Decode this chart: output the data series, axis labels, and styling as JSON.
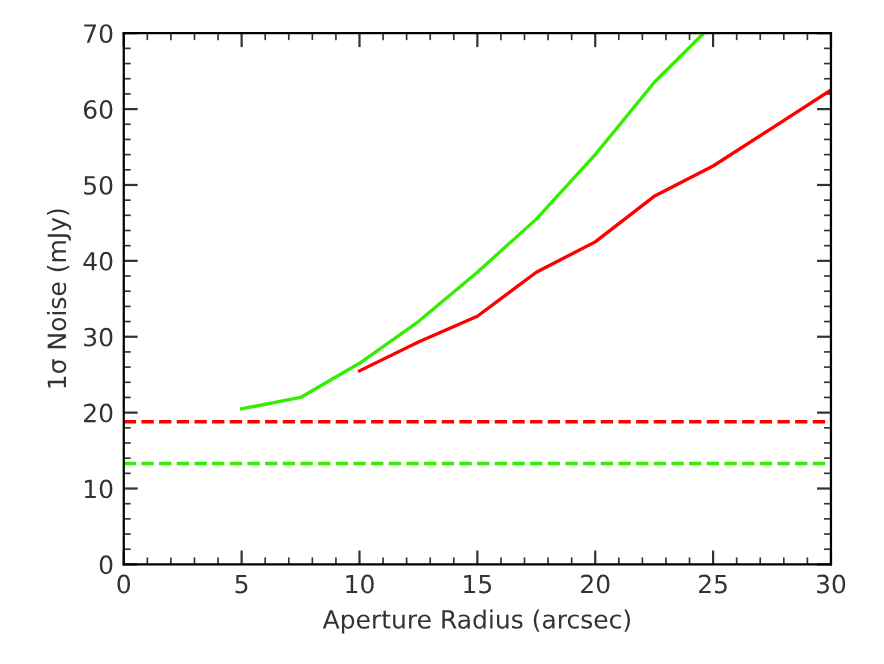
{
  "chart_data": {
    "type": "line",
    "xlabel": "Aperture Radius (arcsec)",
    "ylabel": "1σ Noise (mJy)",
    "xlim": [
      0,
      30
    ],
    "ylim": [
      0,
      70
    ],
    "xticks": [
      0,
      5,
      10,
      15,
      20,
      25,
      30
    ],
    "yticks": [
      0,
      10,
      20,
      30,
      40,
      50,
      60,
      70
    ],
    "grid": false,
    "legend": false,
    "line_style": "solid",
    "series": [
      {
        "color": "#33ee00",
        "x": [
          5,
          7.5,
          10,
          12.5,
          15,
          17.5,
          20,
          22.5,
          24.6
        ],
        "values": [
          20.5,
          22,
          26.5,
          32,
          38.5,
          45.5,
          54,
          63.5,
          70
        ]
      },
      {
        "color": "#ff0000",
        "x": [
          10,
          12.5,
          15,
          17.5,
          20,
          22.5,
          25,
          27.5,
          30
        ],
        "values": [
          25.5,
          29.3,
          32.7,
          38.5,
          42.5,
          48.5,
          52.5,
          57.5,
          62.5
        ]
      }
    ],
    "ref_lines": [
      {
        "axis": "y",
        "value": 18.8,
        "color": "#ff0000",
        "line_style": "dashed"
      },
      {
        "axis": "y",
        "value": 13.3,
        "color": "#33ee00",
        "line_style": "dashed"
      }
    ]
  }
}
